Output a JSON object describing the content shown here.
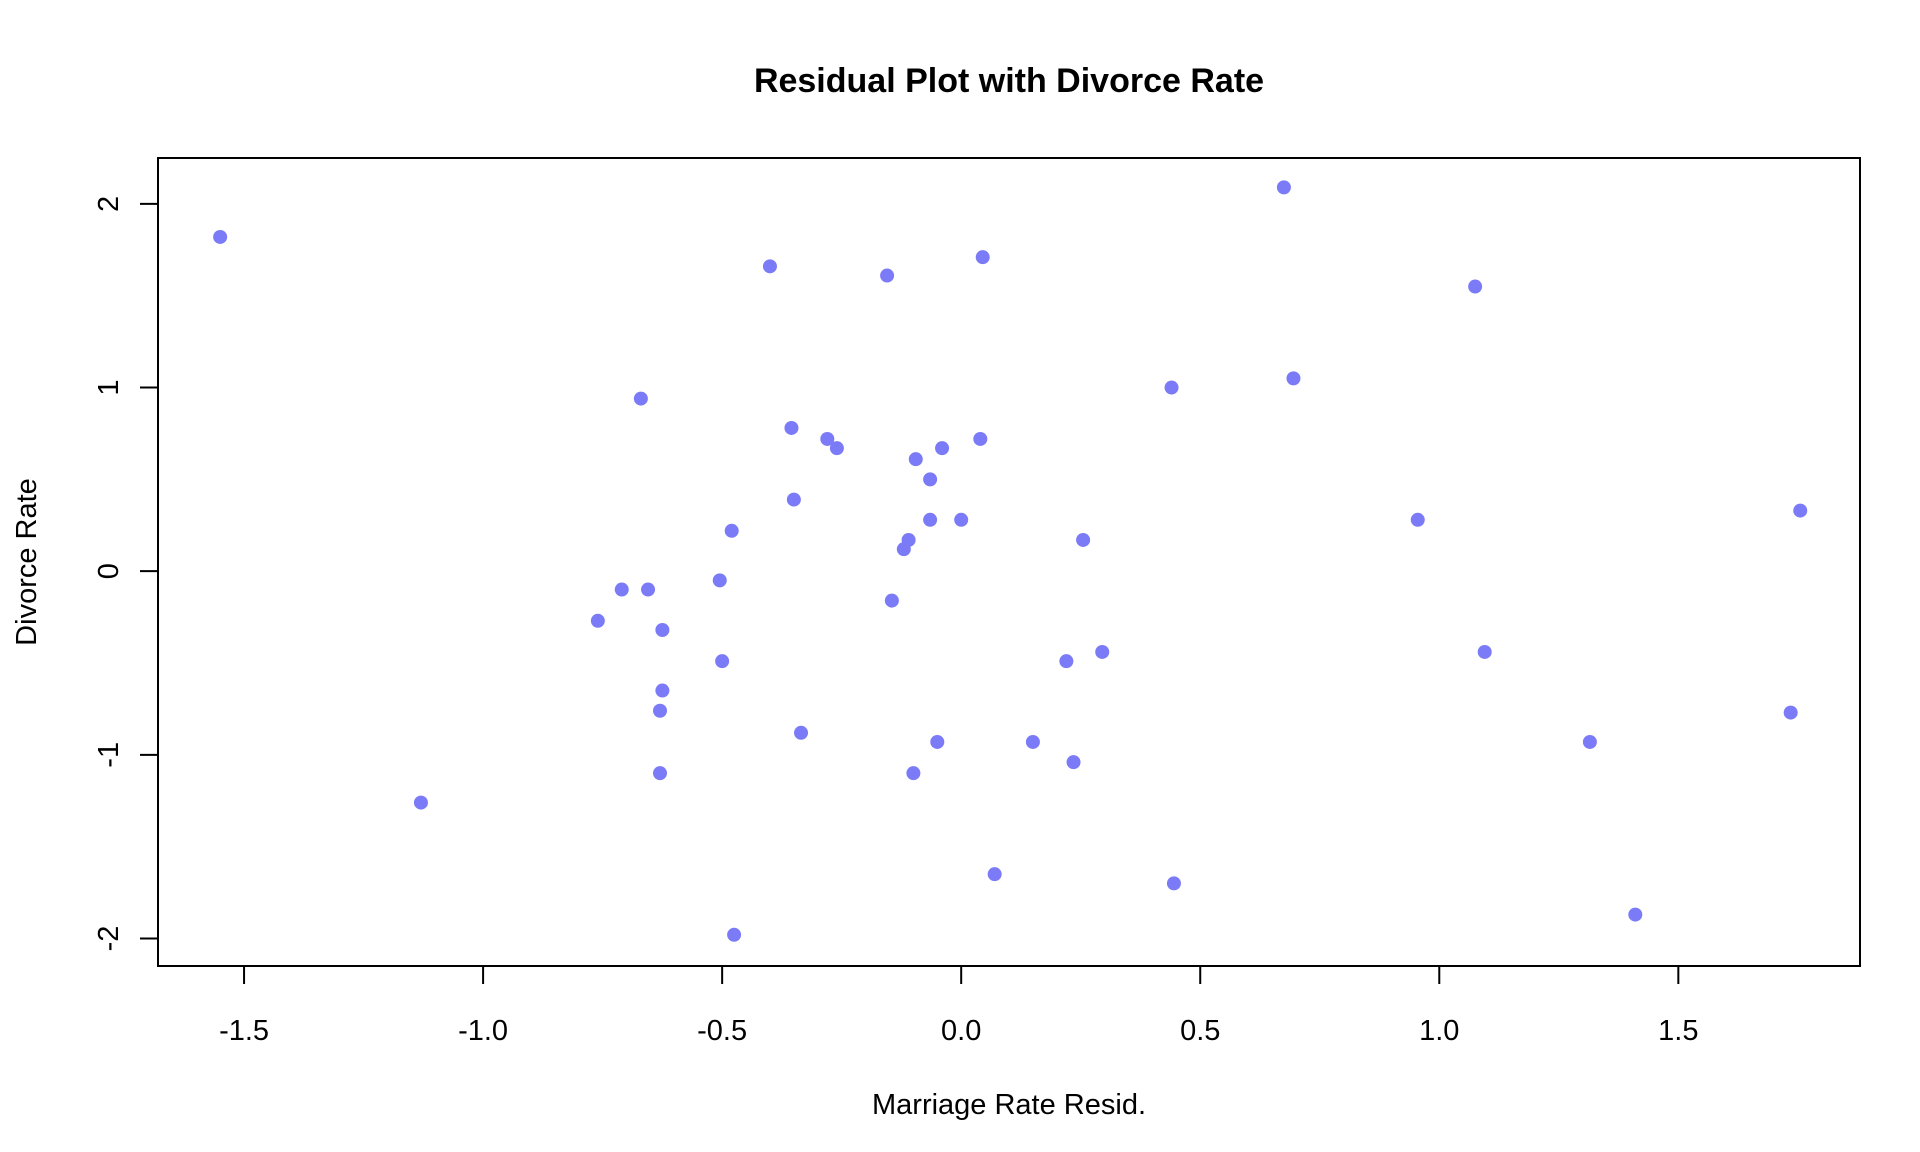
{
  "chart_data": {
    "type": "scatter",
    "title": "Residual Plot with Divorce Rate",
    "xlabel": "Marriage Rate Resid.",
    "ylabel": "Divorce Rate",
    "xlim": [
      -1.68,
      1.88
    ],
    "ylim": [
      -2.15,
      2.25
    ],
    "x_ticks": [
      -1.5,
      -1.0,
      -0.5,
      0.0,
      0.5,
      1.0,
      1.5
    ],
    "x_tick_labels": [
      "-1.5",
      "-1.0",
      "-0.5",
      "0.0",
      "0.5",
      "1.0",
      "1.5"
    ],
    "y_ticks": [
      -2,
      -1,
      0,
      1,
      2
    ],
    "y_tick_labels": [
      "-2",
      "-1",
      "0",
      "1",
      "2"
    ],
    "grid": false,
    "legend": "none",
    "point_color": "#7b7bf7",
    "points": [
      {
        "x": -1.55,
        "y": 1.82
      },
      {
        "x": -1.13,
        "y": -1.26
      },
      {
        "x": -0.76,
        "y": -0.27
      },
      {
        "x": -0.71,
        "y": -0.1
      },
      {
        "x": -0.67,
        "y": 0.94
      },
      {
        "x": -0.655,
        "y": -0.1
      },
      {
        "x": -0.625,
        "y": -0.32
      },
      {
        "x": -0.625,
        "y": -0.65
      },
      {
        "x": -0.63,
        "y": -0.76
      },
      {
        "x": -0.63,
        "y": -1.1
      },
      {
        "x": -0.505,
        "y": -0.05
      },
      {
        "x": -0.5,
        "y": -0.49
      },
      {
        "x": -0.48,
        "y": 0.22
      },
      {
        "x": -0.475,
        "y": -1.98
      },
      {
        "x": -0.4,
        "y": 1.66
      },
      {
        "x": -0.355,
        "y": 0.78
      },
      {
        "x": -0.35,
        "y": 0.39
      },
      {
        "x": -0.335,
        "y": -0.88
      },
      {
        "x": -0.28,
        "y": 0.72
      },
      {
        "x": -0.26,
        "y": 0.67
      },
      {
        "x": -0.155,
        "y": 1.61
      },
      {
        "x": -0.145,
        "y": -0.16
      },
      {
        "x": -0.12,
        "y": 0.12
      },
      {
        "x": -0.11,
        "y": 0.17
      },
      {
        "x": -0.1,
        "y": -1.1
      },
      {
        "x": -0.095,
        "y": 0.61
      },
      {
        "x": -0.065,
        "y": 0.5
      },
      {
        "x": -0.065,
        "y": 0.28
      },
      {
        "x": -0.05,
        "y": -0.93
      },
      {
        "x": -0.04,
        "y": 0.67
      },
      {
        "x": 0.0,
        "y": 0.28
      },
      {
        "x": 0.04,
        "y": 0.72
      },
      {
        "x": 0.045,
        "y": 1.71
      },
      {
        "x": 0.07,
        "y": -1.65
      },
      {
        "x": 0.15,
        "y": -0.93
      },
      {
        "x": 0.22,
        "y": -0.49
      },
      {
        "x": 0.235,
        "y": -1.04
      },
      {
        "x": 0.255,
        "y": 0.17
      },
      {
        "x": 0.295,
        "y": -0.44
      },
      {
        "x": 0.44,
        "y": 1.0
      },
      {
        "x": 0.445,
        "y": -1.7
      },
      {
        "x": 0.675,
        "y": 2.09
      },
      {
        "x": 0.695,
        "y": 1.05
      },
      {
        "x": 0.955,
        "y": 0.28
      },
      {
        "x": 1.075,
        "y": 1.55
      },
      {
        "x": 1.095,
        "y": -0.44
      },
      {
        "x": 1.315,
        "y": -0.93
      },
      {
        "x": 1.41,
        "y": -1.87
      },
      {
        "x": 1.735,
        "y": -0.77
      },
      {
        "x": 1.755,
        "y": 0.33
      }
    ]
  }
}
